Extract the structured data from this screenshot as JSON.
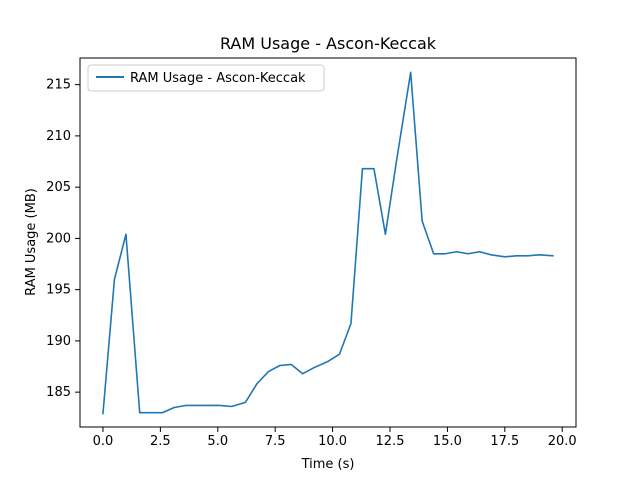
{
  "chart_data": {
    "type": "line",
    "title": "RAM Usage - Ascon-Keccak",
    "xlabel": "Time (s)",
    "ylabel": "RAM Usage (MB)",
    "xlim": [
      -1.0,
      20.6
    ],
    "ylim": [
      181.6,
      217.6
    ],
    "xticks": [
      0.0,
      2.5,
      5.0,
      7.5,
      10.0,
      12.5,
      15.0,
      17.5,
      20.0
    ],
    "xtick_labels": [
      "0.0",
      "2.5",
      "5.0",
      "7.5",
      "10.0",
      "12.5",
      "15.0",
      "17.5",
      "20.0"
    ],
    "yticks": [
      185,
      190,
      195,
      200,
      205,
      210,
      215
    ],
    "ytick_labels": [
      "185",
      "190",
      "195",
      "200",
      "205",
      "210",
      "215"
    ],
    "grid": false,
    "legend_position": "top-left",
    "series": [
      {
        "name": "RAM Usage - Ascon-Keccak",
        "color": "#1f77b4",
        "x": [
          0.0,
          0.5,
          1.0,
          1.6,
          2.6,
          3.1,
          3.6,
          4.1,
          4.6,
          5.1,
          5.6,
          6.2,
          6.7,
          7.2,
          7.7,
          8.2,
          8.7,
          9.2,
          9.8,
          10.3,
          10.8,
          11.3,
          11.8,
          12.3,
          12.8,
          13.4,
          13.9,
          14.4,
          14.9,
          15.4,
          15.9,
          16.4,
          16.9,
          17.5,
          18.0,
          18.5,
          19.0,
          19.6
        ],
        "y": [
          182.9,
          196.0,
          200.4,
          183.0,
          183.0,
          183.5,
          183.7,
          183.7,
          183.7,
          183.7,
          183.6,
          184.0,
          185.8,
          187.0,
          187.6,
          187.7,
          186.8,
          187.4,
          188.0,
          188.7,
          191.7,
          206.8,
          206.8,
          200.4,
          207.8,
          216.2,
          201.7,
          198.5,
          198.5,
          198.7,
          198.5,
          198.7,
          198.4,
          198.2,
          198.3,
          198.3,
          198.4,
          198.3
        ]
      }
    ]
  }
}
